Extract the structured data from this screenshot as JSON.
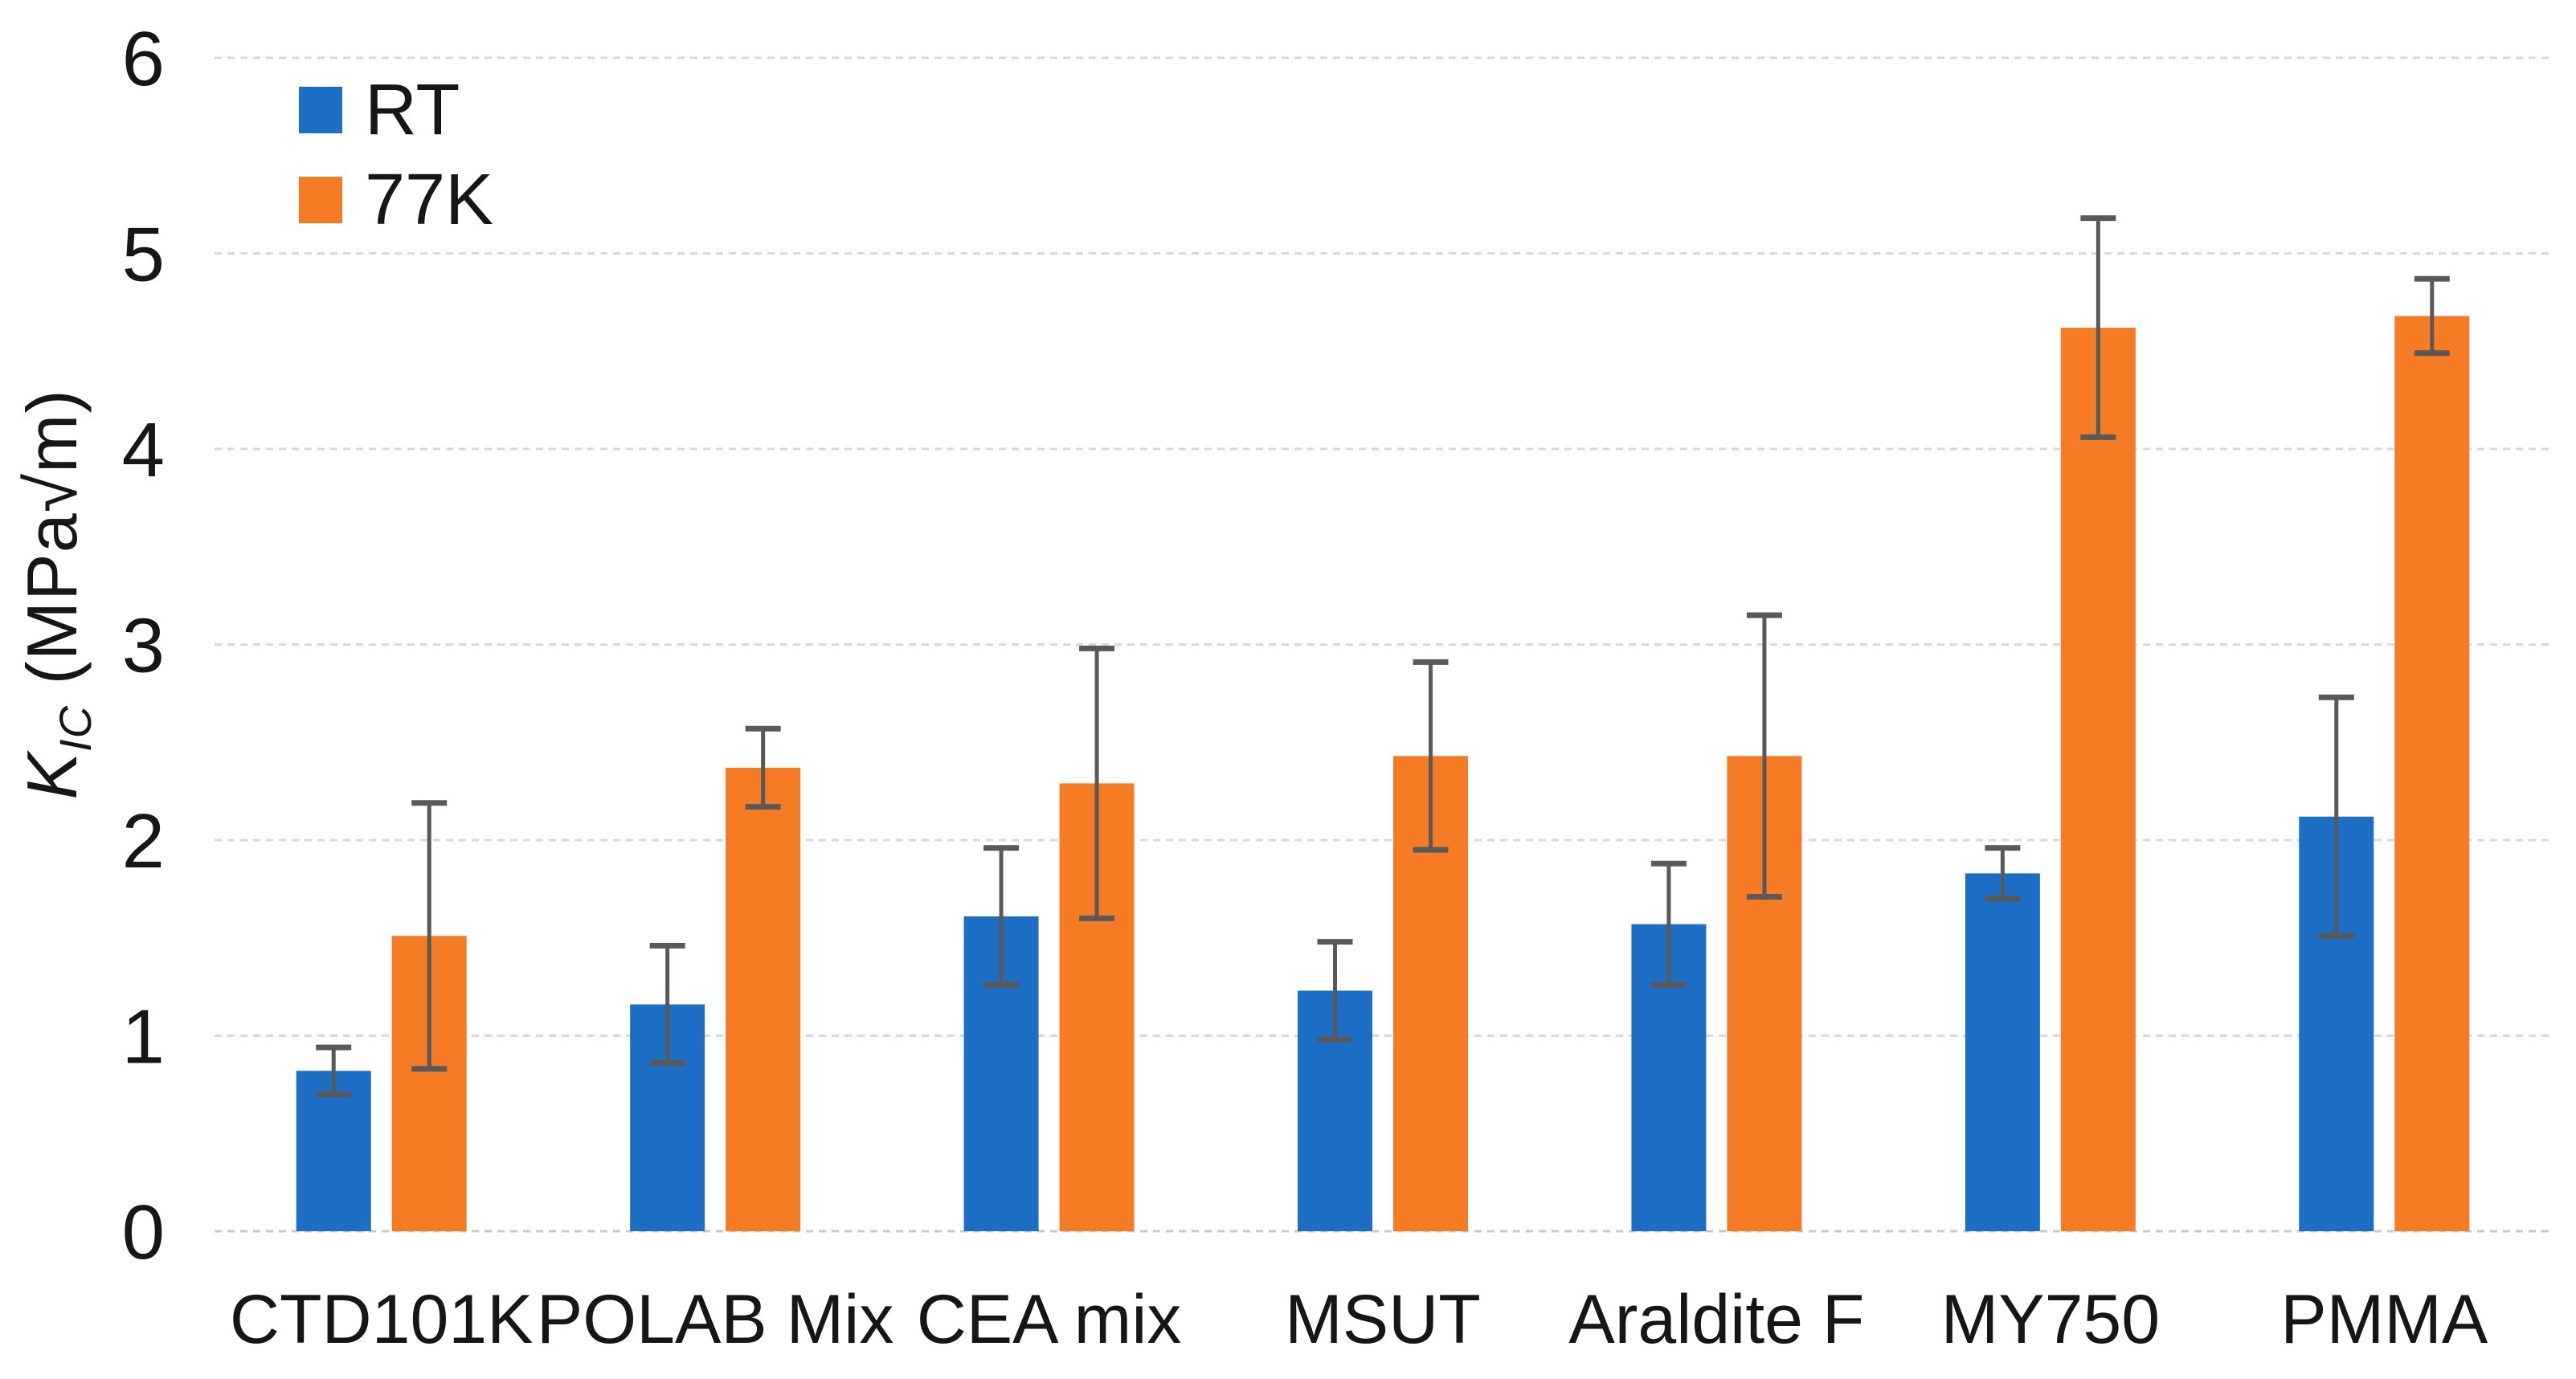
{
  "figure": {
    "y_axis": {
      "label_main": "K",
      "label_sub": "IC",
      "label_rest": " (MPa√m)"
    }
  },
  "chart_data": {
    "type": "bar",
    "title": "",
    "xlabel": "",
    "ylabel": "K_IC (MPa√m)",
    "categories": [
      "CTD101K",
      "POLAB Mix",
      "CEA mix",
      "MSUT",
      "Araldite F",
      "MY750",
      "PMMA"
    ],
    "series": [
      {
        "name": "RT",
        "color": "#1C6FC4",
        "values": [
          0.82,
          1.16,
          1.61,
          1.23,
          1.57,
          1.83,
          2.12
        ],
        "errors": [
          0.12,
          0.3,
          0.35,
          0.25,
          0.31,
          0.13,
          0.61
        ]
      },
      {
        "name": "77K",
        "color": "#F57B25",
        "values": [
          1.51,
          2.37,
          2.29,
          2.43,
          2.43,
          4.62,
          4.68
        ],
        "errors": [
          0.68,
          0.2,
          0.69,
          0.48,
          0.72,
          0.56,
          0.19
        ]
      }
    ],
    "yticks": [
      "0",
      "1",
      "2",
      "3",
      "4",
      "5",
      "6"
    ],
    "ylim": [
      0,
      6
    ],
    "grid": true,
    "legend_position": "top-left",
    "colors": {
      "error_bar": "#595959",
      "gridline": "#D9D9D9",
      "axis_line": "#C9C9C9",
      "text": "#161616",
      "background": "#FFFFFF"
    }
  }
}
